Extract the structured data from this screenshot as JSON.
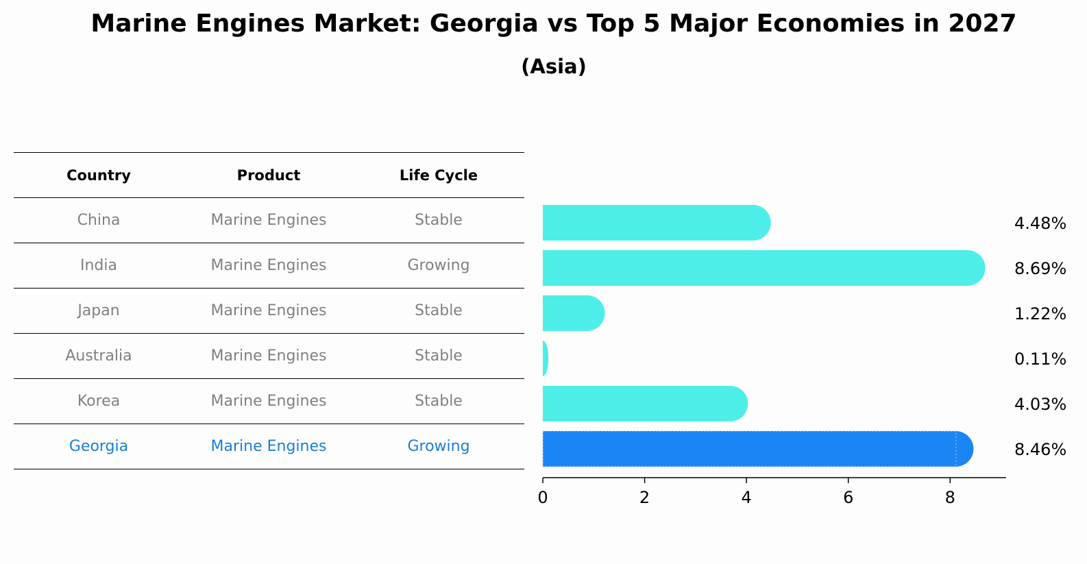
{
  "title": "Marine Engines Market: Georgia vs Top 5 Major Economies in 2027",
  "subtitle": "(Asia)",
  "table": {
    "headers": [
      "Country",
      "Product",
      "Life Cycle"
    ],
    "rows": [
      [
        "China",
        "Marine Engines",
        "Stable"
      ],
      [
        "India",
        "Marine Engines",
        "Growing"
      ],
      [
        "Japan",
        "Marine Engines",
        "Stable"
      ],
      [
        "Australia",
        "Marine Engines",
        "Stable"
      ],
      [
        "Korea",
        "Marine Engines",
        "Stable"
      ],
      [
        "Georgia",
        "Marine Engines",
        "Growing"
      ]
    ],
    "highlight_row": 5
  },
  "chart_data": {
    "type": "bar",
    "orientation": "horizontal",
    "categories": [
      "China",
      "India",
      "Japan",
      "Australia",
      "Korea",
      "Georgia"
    ],
    "values": [
      4.48,
      8.69,
      1.22,
      0.11,
      4.03,
      8.46
    ],
    "value_labels": [
      "4.48%",
      "8.69%",
      "1.22%",
      "0.11%",
      "4.03%",
      "8.46%"
    ],
    "xlim": [
      0,
      9.1
    ],
    "xticks": [
      0,
      2,
      4,
      6,
      8
    ],
    "grid": false,
    "colors": {
      "default": "#4deee8",
      "highlight": "#1a85f5"
    },
    "highlight_index": 5
  }
}
